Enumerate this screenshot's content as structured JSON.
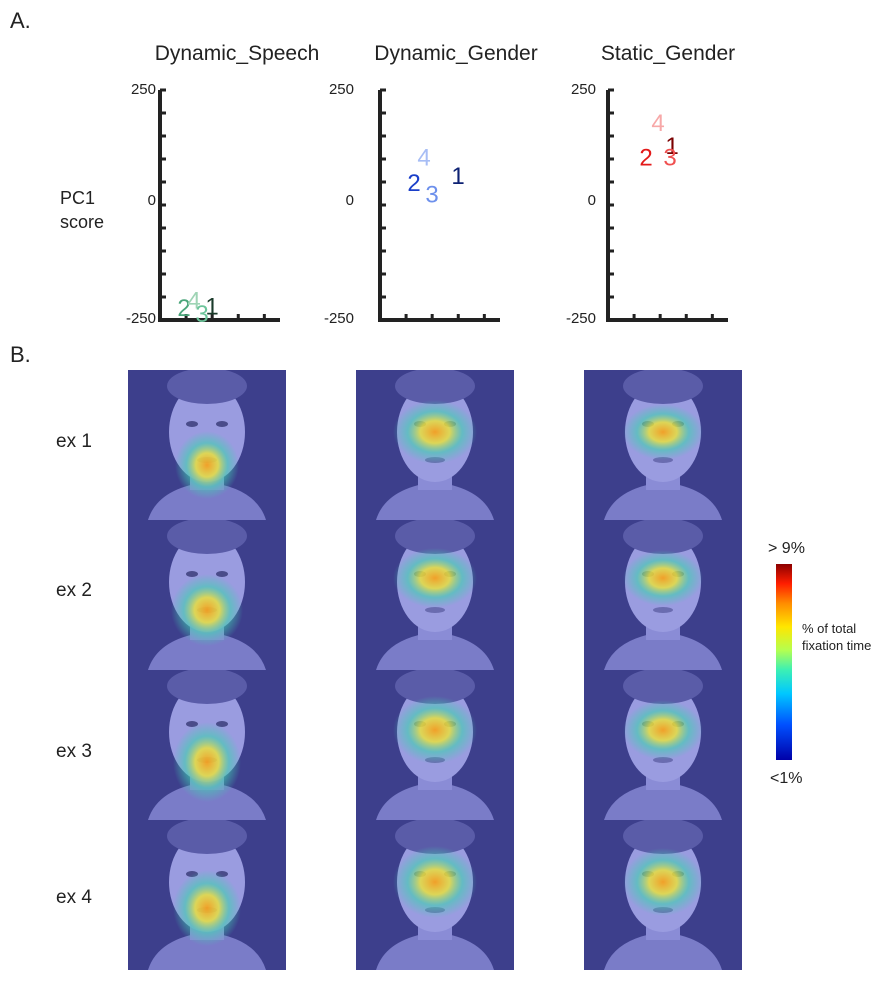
{
  "panel_labels": {
    "a": "A.",
    "b": "B."
  },
  "y_axis_label": [
    "PC1",
    "score"
  ],
  "row_labels": [
    "ex 1",
    "ex 2",
    "ex 3",
    "ex 4"
  ],
  "colorbar": {
    "top": "> 9%",
    "middle": [
      "% of total",
      "fixation time"
    ],
    "bottom": "<1%"
  },
  "chart_data": [
    {
      "type": "scatter",
      "title": "Dynamic_Speech",
      "ylim": [
        -250,
        250
      ],
      "ytick_labels": [
        "250",
        "0",
        "-250"
      ],
      "points": [
        {
          "label": "2",
          "y": -222,
          "color": "#4aa57a"
        },
        {
          "label": "4",
          "y": -205,
          "color": "#9fd4b5"
        },
        {
          "label": "1",
          "y": -218,
          "color": "#1a3a2a"
        },
        {
          "label": "3",
          "y": -235,
          "color": "#6cc49a"
        }
      ]
    },
    {
      "type": "scatter",
      "title": "Dynamic_Gender",
      "ylim": [
        -250,
        250
      ],
      "ytick_labels": [
        "250",
        "0",
        "-250"
      ],
      "points": [
        {
          "label": "4",
          "y": 105,
          "color": "#a7bdf5"
        },
        {
          "label": "2",
          "y": 50,
          "color": "#1b3fc9"
        },
        {
          "label": "1",
          "y": 65,
          "color": "#0d2173"
        },
        {
          "label": "3",
          "y": 25,
          "color": "#6d90ec"
        }
      ]
    },
    {
      "type": "scatter",
      "title": "Static_Gender",
      "ylim": [
        -250,
        250
      ],
      "ytick_labels": [
        "250",
        "0",
        "-250"
      ],
      "points": [
        {
          "label": "4",
          "y": 180,
          "color": "#f7a8a8"
        },
        {
          "label": "1",
          "y": 130,
          "color": "#7a0000"
        },
        {
          "label": "2",
          "y": 105,
          "color": "#e31a1a"
        },
        {
          "label": "3",
          "y": 105,
          "color": "#f05050"
        }
      ]
    }
  ]
}
